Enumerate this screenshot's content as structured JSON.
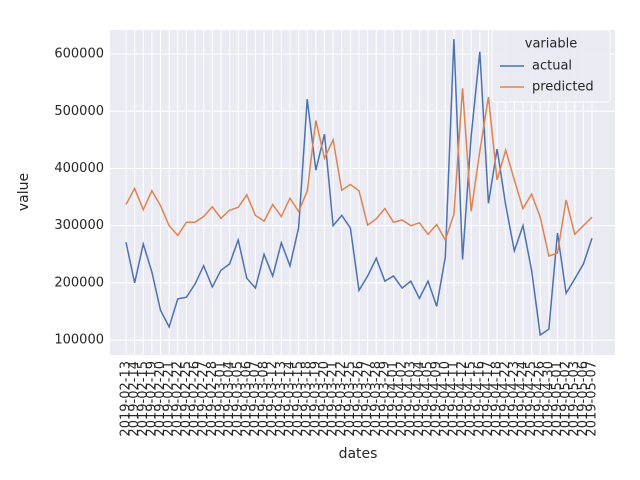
{
  "chart_data": {
    "type": "line",
    "xlabel": "dates",
    "ylabel": "value",
    "categories": [
      "2019-02-13",
      "2019-02-14",
      "2019-02-15",
      "2019-02-19",
      "2019-02-20",
      "2019-02-21",
      "2019-02-22",
      "2019-02-25",
      "2019-02-26",
      "2019-02-27",
      "2019-02-28",
      "2019-03-01",
      "2019-03-04",
      "2019-03-05",
      "2019-03-06",
      "2019-03-07",
      "2019-03-08",
      "2019-03-12",
      "2019-03-13",
      "2019-03-14",
      "2019-03-15",
      "2019-03-18",
      "2019-03-19",
      "2019-03-20",
      "2019-03-21",
      "2019-03-22",
      "2019-03-25",
      "2019-03-26",
      "2019-03-27",
      "2019-03-28",
      "2019-03-29",
      "2019-04-01",
      "2019-04-02",
      "2019-04-03",
      "2019-04-04",
      "2019-04-05",
      "2019-04-09",
      "2019-04-10",
      "2019-04-11",
      "2019-04-12",
      "2019-04-15",
      "2019-04-16",
      "2019-04-17",
      "2019-04-18",
      "2019-04-22",
      "2019-04-23",
      "2019-04-24",
      "2019-04-25",
      "2019-04-26",
      "2019-04-30",
      "2019-05-01",
      "2019-05-02",
      "2019-05-03",
      "2019-05-06",
      "2019-05-07"
    ],
    "series": [
      {
        "name": "actual",
        "color": "#4c72b0",
        "values": [
          271000,
          200000,
          268000,
          219000,
          152000,
          123000,
          172000,
          175000,
          198000,
          230000,
          193000,
          222000,
          233000,
          275000,
          208000,
          191000,
          250000,
          212000,
          270000,
          230000,
          296000,
          521000,
          397000,
          460000,
          300000,
          318000,
          296000,
          187000,
          212000,
          243000,
          203000,
          212000,
          191000,
          203000,
          173000,
          203000,
          159000,
          245000,
          626000,
          241000,
          457000,
          604000,
          339000,
          434000,
          336000,
          256000,
          300000,
          222000,
          109000,
          119000,
          287000,
          182000,
          207000,
          233000,
          278000
        ]
      },
      {
        "name": "predicted",
        "color": "#dd8452",
        "values": [
          337000,
          365000,
          328000,
          361000,
          335000,
          300000,
          283000,
          306000,
          306000,
          316000,
          333000,
          313000,
          327000,
          332000,
          354000,
          318000,
          308000,
          337000,
          316000,
          348000,
          325000,
          360000,
          484000,
          418000,
          450000,
          362000,
          372000,
          361000,
          301000,
          312000,
          330000,
          306000,
          310000,
          300000,
          305000,
          285000,
          302000,
          275000,
          320000,
          540000,
          325000,
          430000,
          525000,
          380000,
          432000,
          380000,
          330000,
          355000,
          315000,
          247000,
          252000,
          345000,
          285000,
          300000,
          315000
        ]
      }
    ],
    "ylim": [
      74000,
      642000
    ],
    "yticks": [
      100000,
      200000,
      300000,
      400000,
      500000,
      600000
    ],
    "grid": true,
    "legend_title": "variable",
    "legend": "upper right"
  }
}
